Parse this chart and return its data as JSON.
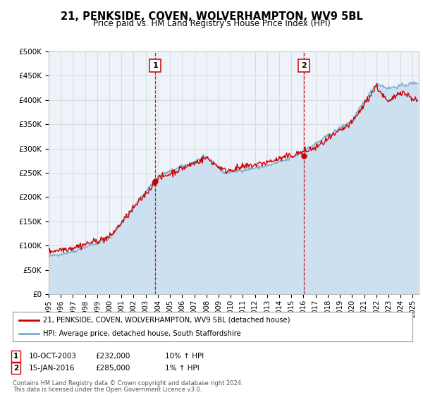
{
  "title": "21, PENKSIDE, COVEN, WOLVERHAMPTON, WV9 5BL",
  "subtitle": "Price paid vs. HM Land Registry's House Price Index (HPI)",
  "ylabel_ticks": [
    "£0",
    "£50K",
    "£100K",
    "£150K",
    "£200K",
    "£250K",
    "£300K",
    "£350K",
    "£400K",
    "£450K",
    "£500K"
  ],
  "ytick_values": [
    0,
    50000,
    100000,
    150000,
    200000,
    250000,
    300000,
    350000,
    400000,
    450000,
    500000
  ],
  "ylim": [
    0,
    500000
  ],
  "xlim_start": 1995.0,
  "xlim_end": 2025.5,
  "sale1_x": 2003.78,
  "sale1_y": 232000,
  "sale1_label": "1",
  "sale1_date": "10-OCT-2003",
  "sale1_price": "£232,000",
  "sale1_hpi": "10% ↑ HPI",
  "sale2_x": 2016.04,
  "sale2_y": 285000,
  "sale2_label": "2",
  "sale2_date": "15-JAN-2016",
  "sale2_price": "£285,000",
  "sale2_hpi": "1% ↑ HPI",
  "legend_line1": "21, PENKSIDE, COVEN, WOLVERHAMPTON, WV9 5BL (detached house)",
  "legend_line2": "HPI: Average price, detached house, South Staffordshire",
  "footer1": "Contains HM Land Registry data © Crown copyright and database right 2024.",
  "footer2": "This data is licensed under the Open Government Licence v3.0.",
  "line_color_red": "#cc0000",
  "line_color_blue": "#7aaccc",
  "fill_color_blue": "#cce0f0",
  "bg_color": "#ffffff",
  "plot_bg_color": "#eef3fa",
  "grid_color": "#d0d0d0",
  "vline_color": "#cc0000",
  "box_color": "#cc0000",
  "xtick_years": [
    1995,
    1996,
    1997,
    1998,
    1999,
    2000,
    2001,
    2002,
    2003,
    2004,
    2005,
    2006,
    2007,
    2008,
    2009,
    2010,
    2011,
    2012,
    2013,
    2014,
    2015,
    2016,
    2017,
    2018,
    2019,
    2020,
    2021,
    2022,
    2023,
    2024,
    2025
  ]
}
